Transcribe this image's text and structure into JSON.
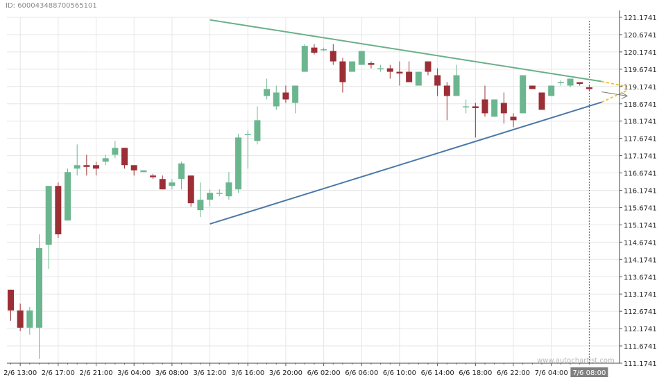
{
  "id_label": "ID: 600043488700565101",
  "watermark": "www.autochartist.com",
  "colors": {
    "background": "#ffffff",
    "grid": "#e6e6e6",
    "bull": "#6bb68f",
    "bear": "#9b2f35",
    "upper_trendline": "#6aaf8a",
    "lower_trendline": "#4a78a8",
    "projection": "#f2c230",
    "axis_text": "#222222",
    "time_highlight_bg": "#808080"
  },
  "chart_data": {
    "type": "candlestick",
    "title": "",
    "xlabel": "",
    "ylabel": "",
    "ylim": [
      111.1741,
      121.1741
    ],
    "grid": true,
    "y_ticks": [
      "121.1741",
      "120.6741",
      "120.1741",
      "119.6741",
      "119.1741",
      "118.6741",
      "118.1741",
      "117.6741",
      "117.1741",
      "116.6741",
      "116.1741",
      "115.6741",
      "115.1741",
      "114.6741",
      "114.1741",
      "113.6741",
      "113.1741",
      "112.6741",
      "112.1741",
      "111.6741",
      "111.1741"
    ],
    "x_ticks": [
      "2/6 13:00",
      "2/6 17:00",
      "2/6 21:00",
      "3/6 04:00",
      "3/6 08:00",
      "3/6 12:00",
      "3/6 16:00",
      "3/6 20:00",
      "6/6 02:00",
      "6/6 06:00",
      "6/6 10:00",
      "6/6 14:00",
      "6/6 18:00",
      "6/6 22:00",
      "7/6 04:00"
    ],
    "x_tick_index": [
      1,
      5,
      9,
      13,
      17,
      21,
      25,
      29,
      33,
      37,
      41,
      45,
      49,
      53,
      57
    ],
    "highlight_time": {
      "label": "7/6 08:00",
      "index": 61
    },
    "candles": [
      {
        "o": 113.3,
        "h": 113.3,
        "l": 112.4,
        "c": 112.7
      },
      {
        "o": 112.7,
        "h": 112.9,
        "l": 112.1,
        "c": 112.2
      },
      {
        "o": 112.2,
        "h": 112.8,
        "l": 112.0,
        "c": 112.7
      },
      {
        "o": 112.2,
        "h": 114.9,
        "l": 111.3,
        "c": 114.5
      },
      {
        "o": 114.6,
        "h": 116.3,
        "l": 113.9,
        "c": 116.3
      },
      {
        "o": 116.3,
        "h": 116.4,
        "l": 114.8,
        "c": 114.9
      },
      {
        "o": 115.3,
        "h": 116.8,
        "l": 115.3,
        "c": 116.7
      },
      {
        "o": 116.8,
        "h": 117.5,
        "l": 116.6,
        "c": 116.9
      },
      {
        "o": 116.9,
        "h": 117.2,
        "l": 116.6,
        "c": 116.85
      },
      {
        "o": 116.9,
        "h": 117.0,
        "l": 116.6,
        "c": 116.8
      },
      {
        "o": 117.0,
        "h": 117.2,
        "l": 116.9,
        "c": 117.1
      },
      {
        "o": 117.2,
        "h": 117.6,
        "l": 117.1,
        "c": 117.4
      },
      {
        "o": 117.4,
        "h": 117.4,
        "l": 116.8,
        "c": 116.9
      },
      {
        "o": 116.9,
        "h": 116.9,
        "l": 116.6,
        "c": 116.75
      },
      {
        "o": 116.7,
        "h": 116.75,
        "l": 116.7,
        "c": 116.75
      },
      {
        "o": 116.6,
        "h": 116.65,
        "l": 116.5,
        "c": 116.55
      },
      {
        "o": 116.5,
        "h": 116.6,
        "l": 116.2,
        "c": 116.2
      },
      {
        "o": 116.3,
        "h": 116.5,
        "l": 116.2,
        "c": 116.4
      },
      {
        "o": 116.5,
        "h": 117.0,
        "l": 116.2,
        "c": 116.95
      },
      {
        "o": 116.6,
        "h": 116.6,
        "l": 115.7,
        "c": 115.8
      },
      {
        "o": 115.6,
        "h": 116.4,
        "l": 115.4,
        "c": 115.9
      },
      {
        "o": 115.9,
        "h": 116.2,
        "l": 115.7,
        "c": 116.1
      },
      {
        "o": 116.1,
        "h": 116.2,
        "l": 116.0,
        "c": 116.1
      },
      {
        "o": 116.0,
        "h": 116.7,
        "l": 115.9,
        "c": 116.4
      },
      {
        "o": 116.2,
        "h": 117.8,
        "l": 116.1,
        "c": 117.7
      },
      {
        "o": 117.8,
        "h": 117.9,
        "l": 116.8,
        "c": 117.8
      },
      {
        "o": 117.6,
        "h": 118.6,
        "l": 117.5,
        "c": 118.2
      },
      {
        "o": 118.9,
        "h": 119.4,
        "l": 118.8,
        "c": 119.1
      },
      {
        "o": 118.6,
        "h": 119.2,
        "l": 118.5,
        "c": 119.0
      },
      {
        "o": 119.0,
        "h": 119.2,
        "l": 118.7,
        "c": 118.8
      },
      {
        "o": 118.7,
        "h": 119.2,
        "l": 118.4,
        "c": 119.2
      },
      {
        "o": 119.6,
        "h": 120.4,
        "l": 119.6,
        "c": 120.35
      },
      {
        "o": 120.3,
        "h": 120.4,
        "l": 120.1,
        "c": 120.15
      },
      {
        "o": 120.25,
        "h": 120.3,
        "l": 120.2,
        "c": 120.25
      },
      {
        "o": 120.2,
        "h": 120.4,
        "l": 119.8,
        "c": 119.9
      },
      {
        "o": 119.9,
        "h": 120.0,
        "l": 119.0,
        "c": 119.3
      },
      {
        "o": 119.6,
        "h": 119.9,
        "l": 119.6,
        "c": 119.9
      },
      {
        "o": 119.8,
        "h": 120.2,
        "l": 119.8,
        "c": 120.2
      },
      {
        "o": 119.85,
        "h": 119.9,
        "l": 119.7,
        "c": 119.8
      },
      {
        "o": 119.7,
        "h": 119.8,
        "l": 119.6,
        "c": 119.7
      },
      {
        "o": 119.7,
        "h": 119.8,
        "l": 119.4,
        "c": 119.6
      },
      {
        "o": 119.6,
        "h": 119.9,
        "l": 119.2,
        "c": 119.55
      },
      {
        "o": 119.6,
        "h": 119.9,
        "l": 119.3,
        "c": 119.3
      },
      {
        "o": 119.2,
        "h": 119.6,
        "l": 119.2,
        "c": 119.6
      },
      {
        "o": 119.9,
        "h": 119.9,
        "l": 119.5,
        "c": 119.6
      },
      {
        "o": 119.5,
        "h": 119.7,
        "l": 118.9,
        "c": 119.2
      },
      {
        "o": 119.2,
        "h": 119.3,
        "l": 118.2,
        "c": 118.9
      },
      {
        "o": 118.9,
        "h": 119.8,
        "l": 118.9,
        "c": 119.5
      },
      {
        "o": 118.6,
        "h": 118.8,
        "l": 118.4,
        "c": 118.6
      },
      {
        "o": 118.6,
        "h": 118.7,
        "l": 117.7,
        "c": 118.55
      },
      {
        "o": 118.8,
        "h": 119.2,
        "l": 118.3,
        "c": 118.4
      },
      {
        "o": 118.3,
        "h": 118.8,
        "l": 118.3,
        "c": 118.8
      },
      {
        "o": 118.7,
        "h": 119.0,
        "l": 118.1,
        "c": 118.4
      },
      {
        "o": 118.3,
        "h": 118.4,
        "l": 118.0,
        "c": 118.2
      },
      {
        "o": 118.4,
        "h": 119.5,
        "l": 118.4,
        "c": 119.5
      },
      {
        "o": 119.2,
        "h": 119.2,
        "l": 119.1,
        "c": 119.1
      },
      {
        "o": 119.0,
        "h": 119.0,
        "l": 118.5,
        "c": 118.5
      },
      {
        "o": 118.9,
        "h": 119.2,
        "l": 118.9,
        "c": 119.2
      },
      {
        "o": 119.3,
        "h": 119.35,
        "l": 119.2,
        "c": 119.3
      },
      {
        "o": 119.2,
        "h": 119.4,
        "l": 119.15,
        "c": 119.4
      },
      {
        "o": 119.3,
        "h": 119.3,
        "l": 119.2,
        "c": 119.25
      },
      {
        "o": 119.15,
        "h": 119.2,
        "l": 119.05,
        "c": 119.1
      }
    ],
    "trendlines": [
      {
        "name": "resistance",
        "from": {
          "index": 21,
          "value": 121.1
        },
        "to": {
          "index": 62.3,
          "value": 119.32
        }
      },
      {
        "name": "support",
        "from": {
          "index": 21,
          "value": 115.2
        },
        "to": {
          "index": 62.3,
          "value": 118.72
        }
      }
    ],
    "projection": {
      "upper": {
        "from": {
          "index": 62.3,
          "value": 119.32
        },
        "to": {
          "index": 65.0,
          "value": 119.17
        }
      },
      "lower": {
        "from": {
          "index": 62.3,
          "value": 118.72
        },
        "to": {
          "index": 65.0,
          "value": 119.06
        }
      },
      "arrow": {
        "from": {
          "index": 62.3,
          "value": 119.02
        },
        "to": {
          "index": 65.0,
          "value": 118.9
        }
      }
    }
  }
}
